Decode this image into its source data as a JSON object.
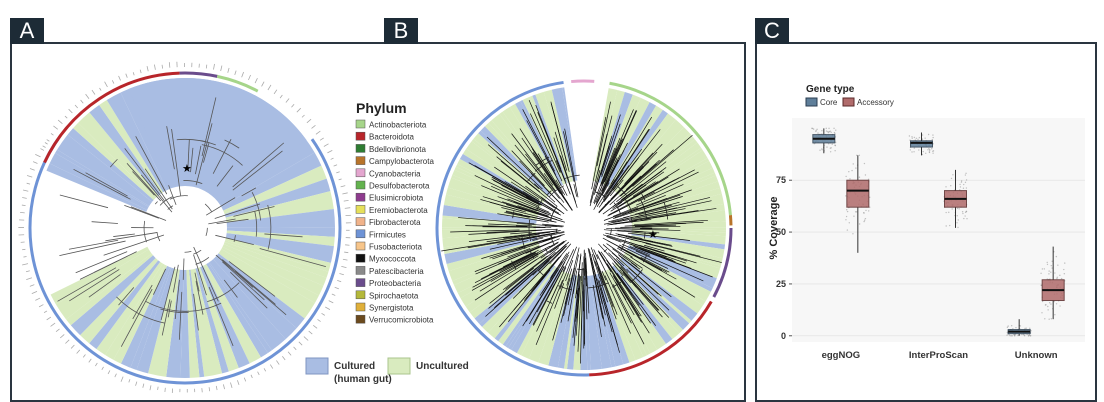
{
  "panels": {
    "a_label": "A",
    "b_label": "B",
    "c_label": "C"
  },
  "legend": {
    "title": "Phylum",
    "items": [
      {
        "name": "Actinobacteriota",
        "color": "#a6d58a"
      },
      {
        "name": "Bacteroidota",
        "color": "#b8252a"
      },
      {
        "name": "Bdellovibrionota",
        "color": "#2e7d32"
      },
      {
        "name": "Campylobacterota",
        "color": "#b8742a"
      },
      {
        "name": "Cyanobacteria",
        "color": "#e4a6cf"
      },
      {
        "name": "Desulfobacterota",
        "color": "#63b24e"
      },
      {
        "name": "Elusimicrobiota",
        "color": "#8e3b8e"
      },
      {
        "name": "Eremiobacterota",
        "color": "#e6e05a"
      },
      {
        "name": "Fibrobacterota",
        "color": "#f1b38a"
      },
      {
        "name": "Firmicutes",
        "color": "#6e93d6"
      },
      {
        "name": "Fusobacteriota",
        "color": "#f7c58a"
      },
      {
        "name": "Myxococcota",
        "color": "#111111"
      },
      {
        "name": "Patescibacteria",
        "color": "#8a8a8a"
      },
      {
        "name": "Proteobacteria",
        "color": "#6a4c8c"
      },
      {
        "name": "Spirochaetota",
        "color": "#b4b83a"
      },
      {
        "name": "Synergistota",
        "color": "#e0b03a"
      },
      {
        "name": "Verrucomicrobiota",
        "color": "#6b4a1e"
      }
    ],
    "cultured_label_1": "Cultured",
    "cultured_label_2": "(human gut)",
    "uncultured_label": "Uncultured",
    "cultured_color": "#a9bde3",
    "uncultured_color": "#d9ebbf"
  },
  "chart_data": {
    "type": "box",
    "legend_title": "Gene type",
    "series": [
      {
        "name": "Core",
        "color": "#5f7f9a"
      },
      {
        "name": "Accessory",
        "color": "#b06b6b"
      }
    ],
    "categories": [
      "eggNOG",
      "InterProScan",
      "Unknown"
    ],
    "ylabel": "% Coverage",
    "yticks": [
      0,
      25,
      50,
      75
    ],
    "ylim": [
      -3,
      105
    ],
    "boxes": [
      {
        "category": "eggNOG",
        "series": "Core",
        "min": 88,
        "q1": 93,
        "median": 95,
        "q3": 97,
        "max": 100
      },
      {
        "category": "eggNOG",
        "series": "Accessory",
        "min": 40,
        "q1": 62,
        "median": 70,
        "q3": 75,
        "max": 87
      },
      {
        "category": "InterProScan",
        "series": "Core",
        "min": 87,
        "q1": 91,
        "median": 93,
        "q3": 94,
        "max": 98
      },
      {
        "category": "InterProScan",
        "series": "Accessory",
        "min": 52,
        "q1": 62,
        "median": 66,
        "q3": 70,
        "max": 80
      },
      {
        "category": "Unknown",
        "series": "Core",
        "min": 0,
        "q1": 1,
        "median": 2,
        "q3": 3,
        "max": 8
      },
      {
        "category": "Unknown",
        "series": "Accessory",
        "min": 8,
        "q1": 17,
        "median": 22,
        "q3": 27,
        "max": 43
      }
    ]
  }
}
